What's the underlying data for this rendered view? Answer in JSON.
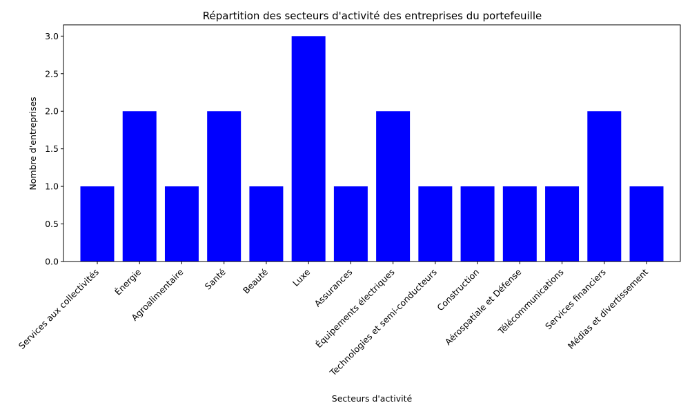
{
  "chart_data": {
    "type": "bar",
    "title": "Répartition des secteurs d'activité des entreprises du portefeuille",
    "xlabel": "Secteurs d'activité",
    "ylabel": "Nombre d'entreprises",
    "categories": [
      "Services aux collectivités",
      "Énergie",
      "Agroalimentaire",
      "Santé",
      "Beauté",
      "Luxe",
      "Assurances",
      "Équipements électriques",
      "Technologies et semi-conducteurs",
      "Construction",
      "Aérospatiale et Défense",
      "Télécommunications",
      "Services financiers",
      "Médias et divertissement"
    ],
    "values": [
      1,
      2,
      1,
      2,
      1,
      3,
      1,
      2,
      1,
      1,
      1,
      1,
      2,
      1
    ],
    "ylim": [
      0,
      3.15
    ],
    "yticks": [
      "0.0",
      "0.5",
      "1.0",
      "1.5",
      "2.0",
      "2.5",
      "3.0"
    ],
    "bar_color": "#0000ff",
    "grid": false,
    "legend": "none"
  }
}
